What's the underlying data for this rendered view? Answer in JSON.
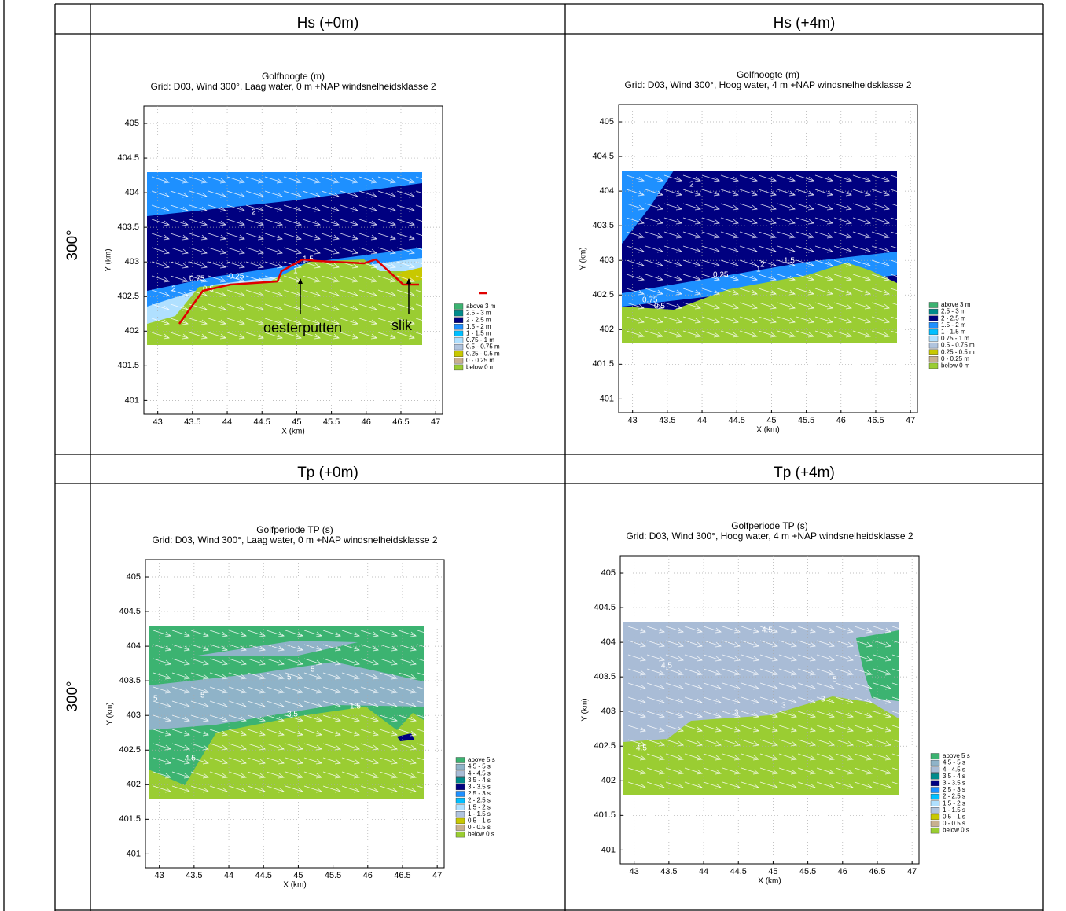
{
  "table": {
    "header_rows": [
      [
        "Hs (+0m)",
        "Hs (+4m)"
      ],
      [
        "Tp (+0m)",
        "Tp (+4m)"
      ]
    ],
    "row_labels": [
      "300°",
      "300°"
    ]
  },
  "plots": [
    {
      "title": "Golfhoogte (m)",
      "subtitle": "Grid: D03, Wind 300°, Laag water, 0 m +NAP windsnelheidsklasse 2",
      "xlabel": "X (km)",
      "ylabel": "Y (km)",
      "xlim": [
        42.8,
        47.1
      ],
      "ylim": [
        400.8,
        405.25
      ],
      "xticks": [
        43,
        43.5,
        44,
        44.5,
        45,
        45.5,
        46,
        46.5,
        47
      ],
      "yticks": [
        401,
        401.5,
        402,
        402.5,
        403,
        403.5,
        404,
        404.5,
        405
      ],
      "legend": [
        {
          "label": "above 3 m",
          "color": "#3cb371"
        },
        {
          "label": "2.5 - 3 m",
          "color": "#008b8b"
        },
        {
          "label": "2 - 2.5 m",
          "color": "#000080"
        },
        {
          "label": "1.5 - 2 m",
          "color": "#1e90ff"
        },
        {
          "label": "1 - 1.5 m",
          "color": "#00bfff"
        },
        {
          "label": "0.75 - 1 m",
          "color": "#b0e0ff"
        },
        {
          "label": "0.5 - 0.75 m",
          "color": "#b0c4de"
        },
        {
          "label": "0.25 - 0.5 m",
          "color": "#c8c800"
        },
        {
          "label": "0 - 0.25 m",
          "color": "#c8b090"
        },
        {
          "label": "below 0 m",
          "color": "#9acd32"
        }
      ],
      "annotations": [
        "oesterputten",
        "slik"
      ],
      "contour_labels": [
        "2",
        "2",
        "1.5",
        "0.25",
        "0.75",
        "0.5",
        "1"
      ]
    },
    {
      "title": "Golfhoogte (m)",
      "subtitle": "Grid: D03, Wind 300°, Hoog water, 4 m +NAP windsnelheidsklasse 2",
      "xlabel": "X (km)",
      "ylabel": "Y (km)",
      "xlim": [
        42.8,
        47.1
      ],
      "ylim": [
        400.8,
        405.25
      ],
      "xticks": [
        43,
        43.5,
        44,
        44.5,
        45,
        45.5,
        46,
        46.5,
        47
      ],
      "yticks": [
        401,
        401.5,
        402,
        402.5,
        403,
        403.5,
        404,
        404.5,
        405
      ],
      "legend": [
        {
          "label": "above 3 m",
          "color": "#3cb371"
        },
        {
          "label": "2.5 - 3 m",
          "color": "#008b8b"
        },
        {
          "label": "2 - 2.5 m",
          "color": "#000080"
        },
        {
          "label": "1.5 - 2 m",
          "color": "#1e90ff"
        },
        {
          "label": "1 - 1.5 m",
          "color": "#00bfff"
        },
        {
          "label": "0.75 - 1 m",
          "color": "#b0e0ff"
        },
        {
          "label": "0.5 - 0.75 m",
          "color": "#b0c4de"
        },
        {
          "label": "0.25 - 0.5 m",
          "color": "#c8c800"
        },
        {
          "label": "0 - 0.25 m",
          "color": "#c8b090"
        },
        {
          "label": "below 0 m",
          "color": "#9acd32"
        }
      ],
      "annotations": [],
      "contour_labels": [
        "2",
        "2",
        "1.5",
        "0.25",
        "0.75",
        "0.5",
        "1"
      ]
    },
    {
      "title": "Golfperiode TP (s)",
      "subtitle": "Grid: D03, Wind 300°, Laag water, 0 m +NAP windsnelheidsklasse 2",
      "xlabel": "X (km)",
      "ylabel": "Y (km)",
      "xlim": [
        42.8,
        47.1
      ],
      "ylim": [
        400.8,
        405.25
      ],
      "xticks": [
        43,
        43.5,
        44,
        44.5,
        45,
        45.5,
        46,
        46.5,
        47
      ],
      "yticks": [
        401,
        401.5,
        402,
        402.5,
        403,
        403.5,
        404,
        404.5,
        405
      ],
      "legend": [
        {
          "label": "above 5 s",
          "color": "#3cb371"
        },
        {
          "label": "4.5 - 5 s",
          "color": "#8fb3c8"
        },
        {
          "label": "4 - 4.5 s",
          "color": "#a9bcd6"
        },
        {
          "label": "3.5 - 4 s",
          "color": "#008b8b"
        },
        {
          "label": "3 - 3.5 s",
          "color": "#000080"
        },
        {
          "label": "2.5 - 3 s",
          "color": "#1e90ff"
        },
        {
          "label": "2 - 2.5 s",
          "color": "#00bfff"
        },
        {
          "label": "1.5 - 2 s",
          "color": "#b0e0ff"
        },
        {
          "label": "1 - 1.5 s",
          "color": "#b0c4de"
        },
        {
          "label": "0.5 - 1 s",
          "color": "#c8c800"
        },
        {
          "label": "0 - 0.5 s",
          "color": "#c8b090"
        },
        {
          "label": "below 0 s",
          "color": "#9acd32"
        }
      ],
      "annotations": [],
      "contour_labels": [
        "5",
        "5",
        "5",
        "5",
        "3.5",
        "1.5",
        "4.5"
      ]
    },
    {
      "title": "Golfperiode TP (s)",
      "subtitle": "Grid: D03, Wind 300°, Hoog water, 4 m +NAP windsnelheidsklasse 2",
      "xlabel": "X (km)",
      "ylabel": "Y (km)",
      "xlim": [
        42.8,
        47.1
      ],
      "ylim": [
        400.8,
        405.25
      ],
      "xticks": [
        43,
        43.5,
        44,
        44.5,
        45,
        45.5,
        46,
        46.5,
        47
      ],
      "yticks": [
        401,
        401.5,
        402,
        402.5,
        403,
        403.5,
        404,
        404.5,
        405
      ],
      "legend": [
        {
          "label": "above 5 s",
          "color": "#3cb371"
        },
        {
          "label": "4.5 - 5 s",
          "color": "#8fb3c8"
        },
        {
          "label": "4 - 4.5 s",
          "color": "#a9bcd6"
        },
        {
          "label": "3.5 - 4 s",
          "color": "#008b8b"
        },
        {
          "label": "3 - 3.5 s",
          "color": "#000080"
        },
        {
          "label": "2.5 - 3 s",
          "color": "#1e90ff"
        },
        {
          "label": "2 - 2.5 s",
          "color": "#00bfff"
        },
        {
          "label": "1.5 - 2 s",
          "color": "#b0e0ff"
        },
        {
          "label": "1 - 1.5 s",
          "color": "#b0c4de"
        },
        {
          "label": "0.5 - 1 s",
          "color": "#c8c800"
        },
        {
          "label": "0 - 0.5 s",
          "color": "#c8b090"
        },
        {
          "label": "below 0 s",
          "color": "#9acd32"
        }
      ],
      "annotations": [],
      "contour_labels": [
        "4.5",
        "4.5",
        "5",
        "3",
        "3",
        "4.5",
        "3"
      ]
    }
  ]
}
